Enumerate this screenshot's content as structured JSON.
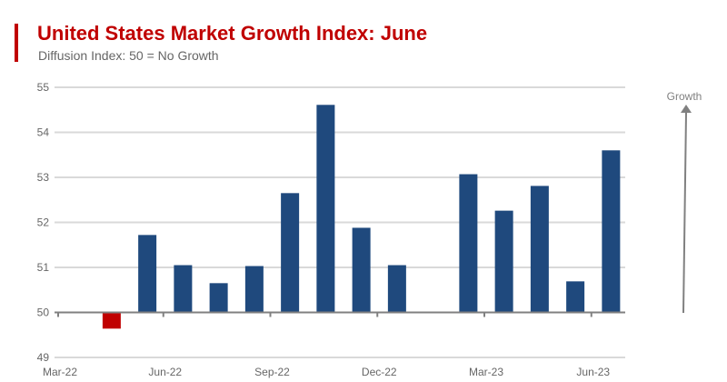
{
  "header": {
    "title": "United States Market Growth Index: June",
    "subtitle": "Diffusion Index: 50 = No Growth"
  },
  "colors": {
    "title": "#C00000",
    "positive_bar": "#1F497D",
    "negative_bar": "#C00000",
    "grid": "#D9D9D9",
    "axis": "#808080"
  },
  "annotation": {
    "label": "Growth",
    "icon": "up-arrow-icon"
  },
  "chart_data": {
    "type": "bar",
    "title": "United States Market Growth Index: June",
    "subtitle": "Diffusion Index: 50 = No Growth",
    "xlabel": "",
    "ylabel": "",
    "baseline": 50,
    "ylim": [
      49,
      55
    ],
    "yticks": [
      49,
      50,
      51,
      52,
      53,
      54,
      55
    ],
    "grid": true,
    "legend": "none",
    "categories": [
      "Mar-22",
      "Apr-22",
      "May-22",
      "Jun-22",
      "Jul-22",
      "Aug-22",
      "Sep-22",
      "Oct-22",
      "Nov-22",
      "Dec-22",
      "Jan-23",
      "Feb-23",
      "Mar-23",
      "Apr-23",
      "May-23",
      "Jun-23"
    ],
    "xtick_labels": [
      "Mar-22",
      "Jun-22",
      "Sep-22",
      "Dec-22",
      "Mar-23",
      "Jun-23"
    ],
    "values": [
      null,
      49.64,
      51.72,
      51.05,
      50.65,
      51.03,
      52.65,
      54.61,
      51.88,
      51.05,
      null,
      53.07,
      52.26,
      52.81,
      50.69,
      53.6
    ]
  }
}
